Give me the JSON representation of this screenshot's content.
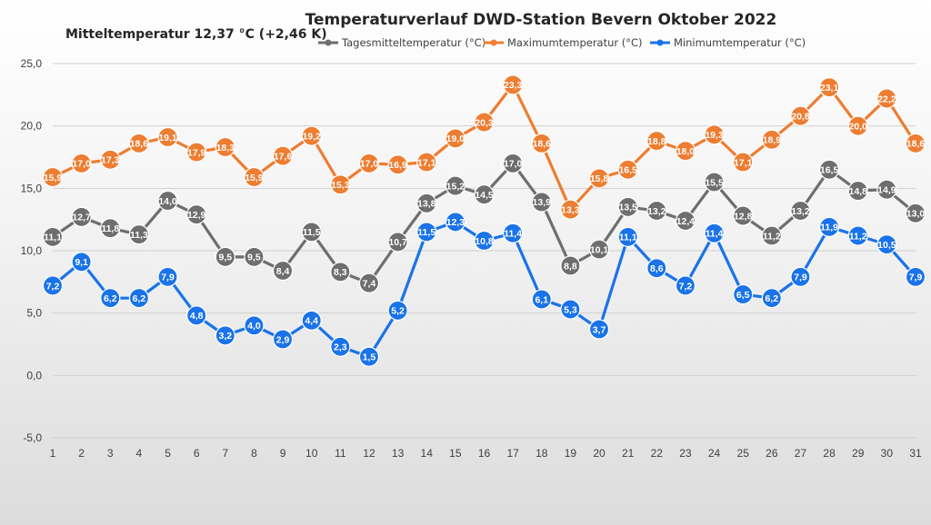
{
  "chart_data": {
    "type": "line",
    "title": "Temperaturverlauf  DWD-Station  Bevern Oktober 2022",
    "annotation": "Mitteltemperatur 12,37 °C (+2,46 K)",
    "xlabel": "",
    "ylabel": "",
    "ylim": [
      -5,
      25
    ],
    "y_ticks": [
      "-5,0",
      "0,0",
      "5,0",
      "10,0",
      "15,0",
      "20,0",
      "25,0"
    ],
    "y_tick_values": [
      -5,
      0,
      5,
      10,
      15,
      20,
      25
    ],
    "grid": true,
    "legend_position": "top",
    "categories": [
      "1",
      "2",
      "3",
      "4",
      "5",
      "6",
      "7",
      "8",
      "9",
      "10",
      "11",
      "12",
      "13",
      "14",
      "15",
      "16",
      "17",
      "18",
      "19",
      "20",
      "21",
      "22",
      "23",
      "24",
      "25",
      "26",
      "27",
      "28",
      "29",
      "30",
      "31"
    ],
    "series": [
      {
        "name": "Tagesmitteltemperatur (°C)",
        "color": "#6e6e6e",
        "values": [
          11.1,
          12.7,
          11.8,
          11.3,
          14.0,
          12.9,
          9.5,
          9.5,
          8.4,
          11.5,
          8.3,
          7.4,
          10.7,
          13.8,
          15.2,
          14.5,
          17.0,
          13.9,
          8.8,
          10.1,
          13.5,
          13.2,
          12.4,
          15.5,
          12.8,
          11.2,
          13.2,
          16.5,
          14.8,
          14.9,
          13.0
        ],
        "labels": [
          "11,1",
          "12,7",
          "11,8",
          "11,3",
          "14,0",
          "12,9",
          "9,5",
          "9,5",
          "8,4",
          "11,5",
          "8,3",
          "7,4",
          "10,7",
          "13,8",
          "15,2",
          "14,5",
          "17,0",
          "13,9",
          "8,8",
          "10,1",
          "13,5",
          "13,2",
          "12,4",
          "15,5",
          "12,8",
          "11,2",
          "13,2",
          "16,5",
          "14,8",
          "14,9",
          "13,0"
        ]
      },
      {
        "name": "Maximumtemperatur (°C)",
        "color": "#ed7d31",
        "values": [
          15.9,
          17.0,
          17.3,
          18.6,
          19.1,
          17.9,
          18.3,
          15.9,
          17.6,
          19.2,
          15.3,
          17.0,
          16.9,
          17.1,
          19.0,
          20.3,
          23.3,
          18.6,
          13.3,
          15.8,
          16.5,
          18.8,
          18.0,
          19.3,
          17.1,
          18.9,
          20.8,
          23.1,
          20.0,
          22.2,
          18.6
        ],
        "labels": [
          "15,9",
          "17,0",
          "17,3",
          "18,6",
          "19,1",
          "17,9",
          "18,3",
          "15,9",
          "17,6",
          "19,2",
          "15,3",
          "17,0",
          "16,9",
          "17,1",
          "19,0",
          "20,3",
          "23,3",
          "18,6",
          "13,3",
          "15,8",
          "16,5",
          "18,8",
          "18,0",
          "19,3",
          "17,1",
          "18,9",
          "20,8",
          "23,1",
          "20,0",
          "22,2",
          "18,6"
        ]
      },
      {
        "name": "Minimumtemperatur (°C)",
        "color": "#1a73e8",
        "values": [
          7.2,
          9.1,
          6.2,
          6.2,
          7.9,
          4.8,
          3.2,
          4.0,
          2.9,
          4.4,
          2.3,
          1.5,
          5.2,
          11.5,
          12.3,
          10.8,
          11.4,
          6.1,
          5.3,
          3.7,
          11.1,
          8.6,
          7.2,
          11.4,
          6.5,
          6.2,
          7.9,
          11.9,
          11.2,
          10.5,
          7.9
        ],
        "labels": [
          "7,2",
          "9,1",
          "6,2",
          "6,2",
          "7,9",
          "4,8",
          "3,2",
          "4,0",
          "2,9",
          "4,4",
          "2,3",
          "1,5",
          "5,2",
          "11,5",
          "12,3",
          "10,8",
          "11,4",
          "6,1",
          "5,3",
          "3,7",
          "11,1",
          "8,6",
          "7,2",
          "11,4",
          "6,5",
          "6,2",
          "7,9",
          "11,9",
          "11,2",
          "10,5",
          "7,9"
        ]
      }
    ]
  }
}
